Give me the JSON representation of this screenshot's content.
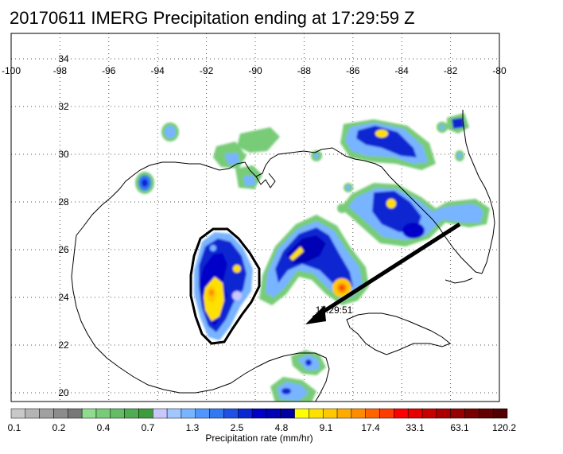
{
  "title": "20170611 IMERG Precipitation ending at 17:29:59 Z",
  "lon_ticks": [
    "-100",
    "-98",
    "-96",
    "-94",
    "-92",
    "-90",
    "-88",
    "-86",
    "-84",
    "-82",
    "-80"
  ],
  "lat_ticks": [
    "34",
    "32",
    "30",
    "28",
    "26",
    "24",
    "22",
    "20"
  ],
  "storm_label": "17:29:51",
  "colorbar": {
    "title": "Precipitation rate (mm/hr)",
    "labels": [
      "0.1",
      "0.2",
      "0.4",
      "0.7",
      "1.3",
      "2.5",
      "4.8",
      "9.1",
      "17.4",
      "33.1",
      "63.1",
      "120.2"
    ],
    "colors": [
      "#c8c8c8",
      "#b4b4b4",
      "#a0a0a0",
      "#8c8c8c",
      "#787878",
      "#8fdc8f",
      "#78cc78",
      "#64bc64",
      "#50ac50",
      "#3c9c3c",
      "#c8c8ff",
      "#a0c8ff",
      "#78b4ff",
      "#5096ff",
      "#3278f0",
      "#1e50e6",
      "#0a28d2",
      "#0000c8",
      "#0000b4",
      "#0000a0",
      "#ffff00",
      "#ffe100",
      "#ffc800",
      "#ffaa00",
      "#ff8c00",
      "#ff6400",
      "#ff3c00",
      "#ff0000",
      "#e60000",
      "#c80000",
      "#aa0000",
      "#960000",
      "#780000",
      "#640000",
      "#500000"
    ]
  }
}
